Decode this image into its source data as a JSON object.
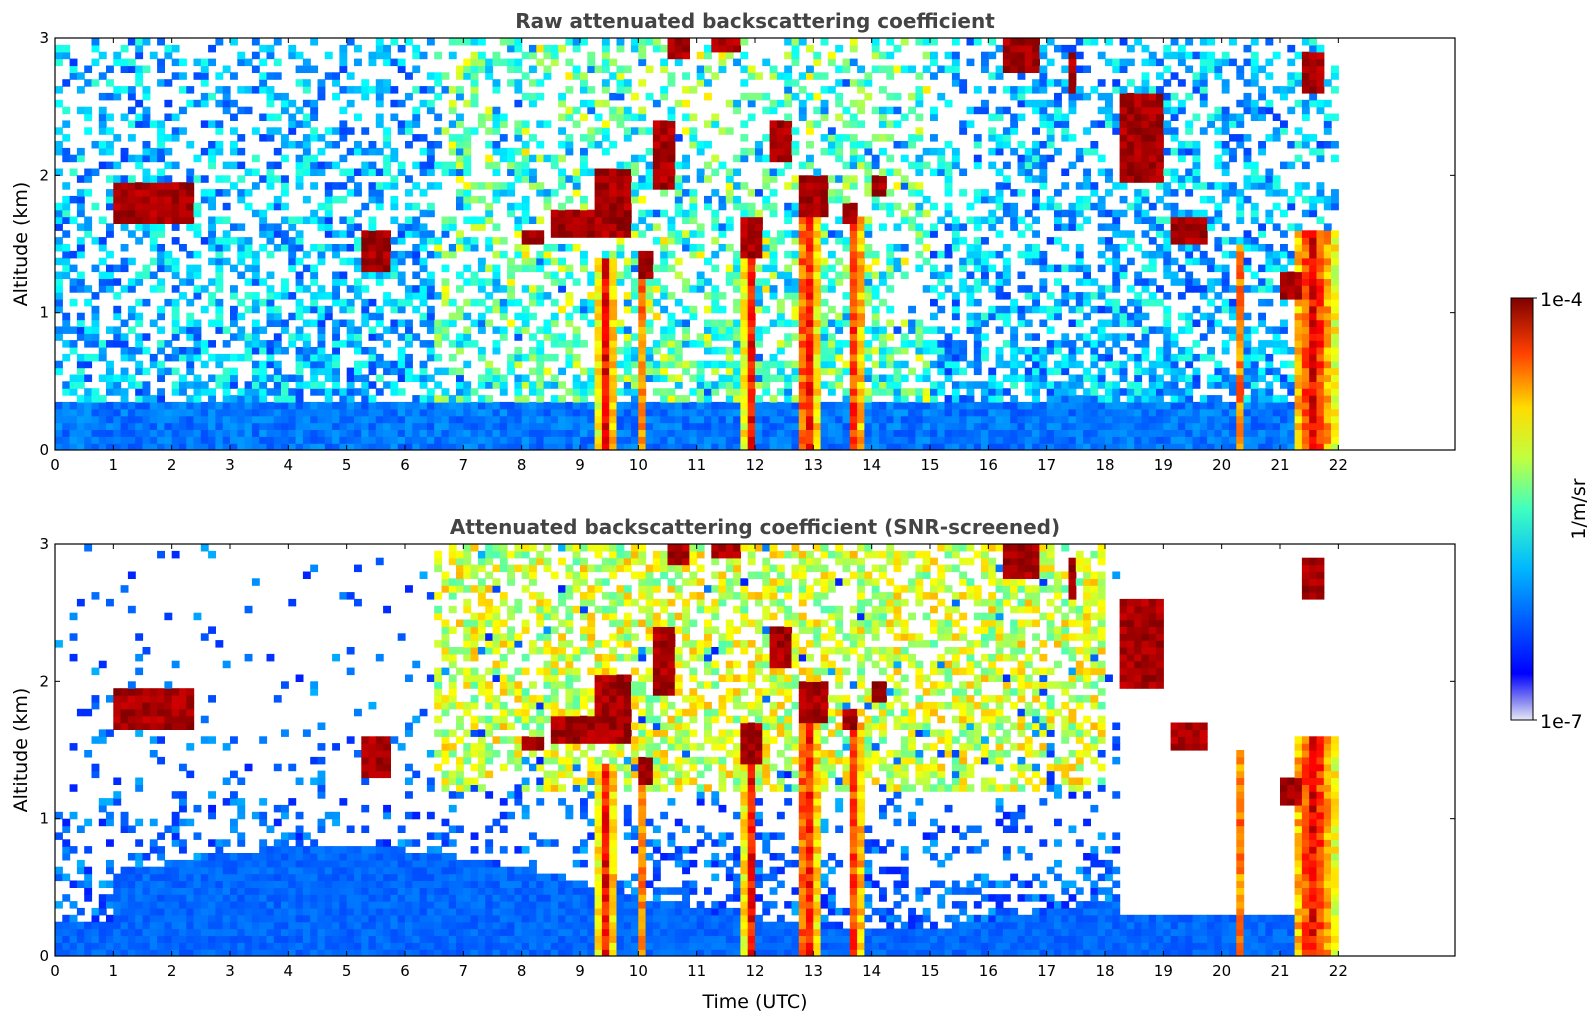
{
  "chart_data": [
    {
      "type": "heatmap",
      "title": "Raw attenuated backscattering coefficient",
      "xlabel": "",
      "ylabel": "Altitude (km)",
      "x_ticks": [
        "0",
        "1",
        "2",
        "3",
        "4",
        "5",
        "6",
        "7",
        "8",
        "9",
        "10",
        "11",
        "12",
        "13",
        "14",
        "15",
        "16",
        "17",
        "18",
        "19",
        "20",
        "21",
        "22"
      ],
      "y_ticks": [
        "0",
        "1",
        "2",
        "3"
      ],
      "xlim": [
        0,
        24
      ],
      "ylim": [
        0,
        3
      ],
      "data_end_time": 22,
      "cloud_layers": [
        {
          "t_start": 1.05,
          "t_end": 2.4,
          "alt_bottom": 1.65,
          "alt_top": 1.95
        },
        {
          "t_start": 5.2,
          "t_end": 5.75,
          "alt_bottom": 1.3,
          "alt_top": 1.6
        },
        {
          "t_start": 8.0,
          "t_end": 8.4,
          "alt_bottom": 1.5,
          "alt_top": 1.6
        },
        {
          "t_start": 8.5,
          "t_end": 9.2,
          "alt_bottom": 1.55,
          "alt_top": 1.75
        },
        {
          "t_start": 9.2,
          "t_end": 9.9,
          "alt_bottom": 1.55,
          "alt_top": 2.05
        },
        {
          "t_start": 10.0,
          "t_end": 10.2,
          "alt_bottom": 1.25,
          "alt_top": 1.45
        },
        {
          "t_start": 10.2,
          "t_end": 10.6,
          "alt_bottom": 1.9,
          "alt_top": 2.4
        },
        {
          "t_start": 10.55,
          "t_end": 10.85,
          "alt_bottom": 2.85,
          "alt_top": 3.0
        },
        {
          "t_start": 11.3,
          "t_end": 11.7,
          "alt_bottom": 2.9,
          "alt_top": 3.0
        },
        {
          "t_start": 11.8,
          "t_end": 12.1,
          "alt_bottom": 1.4,
          "alt_top": 1.7
        },
        {
          "t_start": 12.2,
          "t_end": 12.6,
          "alt_bottom": 2.1,
          "alt_top": 2.4
        },
        {
          "t_start": 12.8,
          "t_end": 13.2,
          "alt_bottom": 1.7,
          "alt_top": 2.0
        },
        {
          "t_start": 13.5,
          "t_end": 13.8,
          "alt_bottom": 1.65,
          "alt_top": 1.8
        },
        {
          "t_start": 14.0,
          "t_end": 14.3,
          "alt_bottom": 1.85,
          "alt_top": 2.0
        },
        {
          "t_start": 16.3,
          "t_end": 16.9,
          "alt_bottom": 2.75,
          "alt_top": 3.0
        },
        {
          "t_start": 17.35,
          "t_end": 17.55,
          "alt_bottom": 2.6,
          "alt_top": 2.9
        },
        {
          "t_start": 18.2,
          "t_end": 19.0,
          "alt_bottom": 1.95,
          "alt_top": 2.6
        },
        {
          "t_start": 19.1,
          "t_end": 19.8,
          "alt_bottom": 1.5,
          "alt_top": 1.7
        },
        {
          "t_start": 21.05,
          "t_end": 21.4,
          "alt_bottom": 1.1,
          "alt_top": 1.3
        },
        {
          "t_start": 21.4,
          "t_end": 21.8,
          "alt_bottom": 2.6,
          "alt_top": 2.9
        }
      ],
      "precipitation_columns": [
        {
          "t_start": 9.3,
          "t_end": 9.6,
          "alt_top": 1.4
        },
        {
          "t_start": 9.95,
          "t_end": 10.1,
          "alt_top": 1.3
        },
        {
          "t_start": 11.8,
          "t_end": 12.05,
          "alt_top": 1.5
        },
        {
          "t_start": 12.7,
          "t_end": 13.1,
          "alt_top": 2.0
        },
        {
          "t_start": 13.6,
          "t_end": 13.85,
          "alt_top": 1.7
        },
        {
          "t_start": 20.2,
          "t_end": 20.35,
          "alt_top": 1.5
        },
        {
          "t_start": 21.2,
          "t_end": 21.95,
          "alt_top": 1.6
        }
      ]
    },
    {
      "type": "heatmap",
      "title": "Attenuated backscattering coefficient (SNR-screened)",
      "xlabel": "Time (UTC)",
      "ylabel": "Altitude (km)",
      "x_ticks": [
        "0",
        "1",
        "2",
        "3",
        "4",
        "5",
        "6",
        "7",
        "8",
        "9",
        "10",
        "11",
        "12",
        "13",
        "14",
        "15",
        "16",
        "17",
        "18",
        "19",
        "20",
        "21",
        "22"
      ],
      "y_ticks": [
        "0",
        "1",
        "2",
        "3"
      ],
      "xlim": [
        0,
        24
      ],
      "ylim": [
        0,
        3
      ],
      "data_end_time": 22,
      "boundary_layer_top": 0.25
    }
  ],
  "colorbar": {
    "label": "1/m/sr",
    "max_label": "1e-4",
    "min_label": "1e-7",
    "colormap": "jet",
    "scale": "log"
  }
}
